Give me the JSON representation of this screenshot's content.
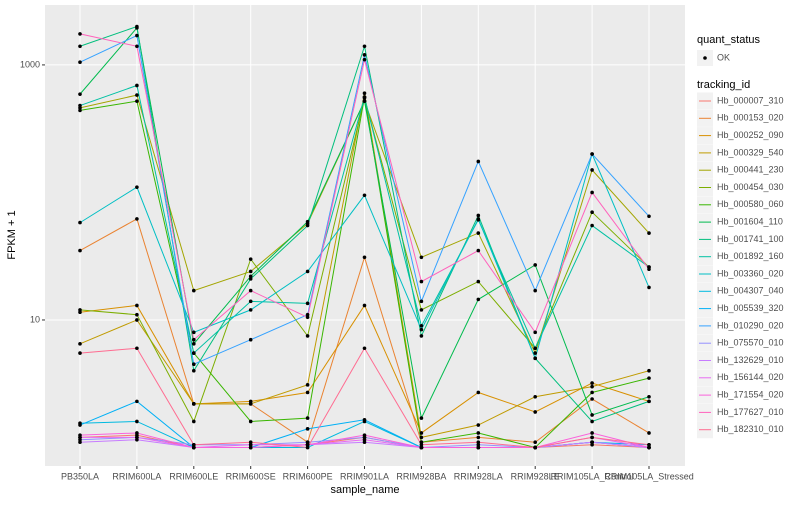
{
  "chart_data": {
    "type": "line",
    "x_label": "sample_name",
    "y_label": "FPKM + 1",
    "categories": [
      "PB350LA",
      "RRIM600LA",
      "RRIM600LE",
      "RRIM600SE",
      "RRIM600PE",
      "RRIM901LA",
      "RRIM928BA",
      "RRIM928LA",
      "RRIM928LE",
      "RRIM105LA_Control",
      "RRIM105LA_Stressed"
    ],
    "ylim": [
      0.716,
      2950
    ],
    "yticks": [
      10,
      1000
    ],
    "ylog": true,
    "grid": true,
    "legend_position": "right",
    "point_legend": {
      "title": "quant_status",
      "levels": [
        "OK"
      ]
    },
    "legend_title": "tracking_id",
    "series": [
      {
        "name": "Hb_000007_310",
        "color": "#F8766D",
        "values": [
          1.2,
          1.25,
          1,
          1,
          1.05,
          1.2,
          1,
          1,
          1,
          1.05,
          1
        ]
      },
      {
        "name": "Hb_000153_020",
        "color": "#EA8331",
        "values": [
          35,
          62,
          2.2,
          2.2,
          1.1,
          31,
          1.1,
          1.2,
          1.1,
          2.4,
          1.3
        ]
      },
      {
        "name": "Hb_000252_090",
        "color": "#D89000",
        "values": [
          11.5,
          13,
          2.2,
          2.3,
          2.7,
          13,
          1.3,
          2.7,
          1.9,
          3.2,
          2.3
        ]
      },
      {
        "name": "Hb_000329_540",
        "color": "#C09B00",
        "values": [
          6.5,
          10,
          2.2,
          2.2,
          3.1,
          600,
          1.2,
          1.5,
          2.5,
          3,
          4
        ]
      },
      {
        "name": "Hb_000441_230",
        "color": "#A3A500",
        "values": [
          460,
          580,
          17,
          24,
          57,
          520,
          31,
          48,
          5.5,
          150,
          48
        ]
      },
      {
        "name": "Hb_000454_030",
        "color": "#7CAE00",
        "values": [
          12,
          11,
          1.6,
          30,
          7.5,
          550,
          12,
          20,
          6,
          70,
          26
        ]
      },
      {
        "name": "Hb_000580_060",
        "color": "#39B600",
        "values": [
          440,
          520,
          5.5,
          1.6,
          1.7,
          560,
          1.1,
          1.3,
          1,
          2.7,
          3.5
        ]
      },
      {
        "name": "Hb_001604_110",
        "color": "#00BB4E",
        "values": [
          590,
          1950,
          6.5,
          22,
          59,
          520,
          1.7,
          14.5,
          27,
          1.8,
          2.5
        ]
      },
      {
        "name": "Hb_001741_100",
        "color": "#00BF7D",
        "values": [
          1400,
          2000,
          4,
          21,
          55,
          1400,
          7.5,
          66,
          5,
          1.6,
          2.3
        ]
      },
      {
        "name": "Hb_001892_160",
        "color": "#00C1A3",
        "values": [
          480,
          690,
          5.5,
          14,
          13.5,
          560,
          9,
          61,
          6,
          55,
          26
        ]
      },
      {
        "name": "Hb_003360_020",
        "color": "#00BFC4",
        "values": [
          58,
          110,
          8,
          12,
          24,
          95,
          8.4,
          62,
          5,
          200,
          18
        ]
      },
      {
        "name": "Hb_004307_040",
        "color": "#00BAE0",
        "values": [
          1.55,
          1.6,
          1,
          1,
          1,
          1.6,
          1,
          1,
          1,
          1.1,
          1
        ]
      },
      {
        "name": "Hb_005539_320",
        "color": "#00B0F6",
        "values": [
          1.5,
          2.3,
          1,
          1,
          1.4,
          1.65,
          1,
          1,
          1,
          1.1,
          1.05
        ]
      },
      {
        "name": "Hb_010290_020",
        "color": "#35A2FF",
        "values": [
          1050,
          1700,
          4.5,
          7,
          11,
          1200,
          14,
          175,
          17,
          200,
          65
        ]
      },
      {
        "name": "Hb_075570_010",
        "color": "#9590FF",
        "values": [
          1.15,
          1.2,
          1.05,
          1.05,
          1.1,
          1.2,
          1,
          1.05,
          1,
          1.1,
          1
        ]
      },
      {
        "name": "Hb_132629_010",
        "color": "#C77CFF",
        "values": [
          1.1,
          1.15,
          1,
          1,
          1.05,
          1.1,
          1,
          1,
          1,
          1.1,
          1
        ]
      },
      {
        "name": "Hb_156144_020",
        "color": "#E76BF3",
        "values": [
          1.2,
          1.2,
          1,
          1.05,
          1.05,
          1.15,
          1,
          1,
          1,
          1.2,
          1
        ]
      },
      {
        "name": "Hb_171554_020",
        "color": "#FA62DB",
        "values": [
          1.25,
          1.3,
          1,
          1,
          1.05,
          1.25,
          1,
          1,
          1,
          1.3,
          1
        ]
      },
      {
        "name": "Hb_177627_010",
        "color": "#FF62BC",
        "values": [
          1750,
          1400,
          7,
          17,
          10.5,
          1100,
          20,
          35,
          8,
          100,
          25
        ]
      },
      {
        "name": "Hb_182310_010",
        "color": "#FF6C91",
        "values": [
          5.5,
          6,
          1.05,
          1.1,
          1,
          6,
          1.05,
          1.1,
          1,
          1.2,
          1.05
        ]
      }
    ]
  }
}
